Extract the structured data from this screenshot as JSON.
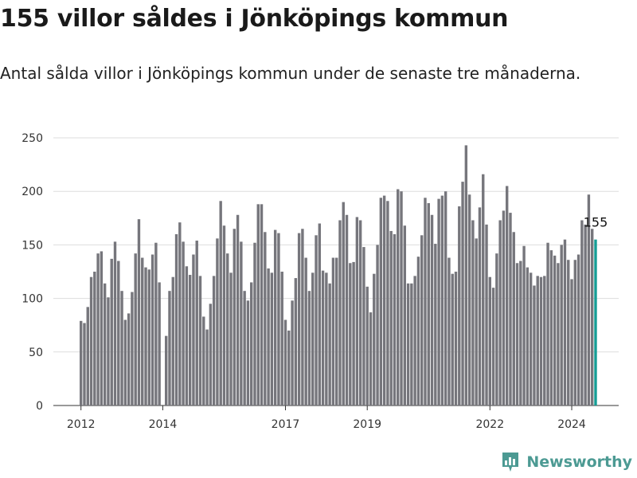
{
  "title": "155 villor såldes i Jönköpings kommun",
  "subtitle": "Antal sålda villor i Jönköpings kommun under de senaste tre månaderna.",
  "brand": "Newsworthy",
  "colors": {
    "bar": "#76767c",
    "highlight": "#159d95",
    "brand": "#4c9a93",
    "grid": "#dddddd"
  },
  "chart_data": {
    "type": "bar",
    "start": "2012-01",
    "values": [
      79,
      77,
      92,
      120,
      125,
      142,
      144,
      114,
      101,
      137,
      153,
      135,
      107,
      80,
      86,
      106,
      142,
      174,
      138,
      129,
      127,
      141,
      152,
      115,
      0,
      65,
      107,
      120,
      160,
      171,
      153,
      130,
      122,
      141,
      154,
      121,
      83,
      71,
      95,
      121,
      156,
      191,
      168,
      142,
      124,
      165,
      178,
      153,
      107,
      98,
      115,
      152,
      188,
      188,
      162,
      128,
      124,
      164,
      161,
      125,
      80,
      70,
      98,
      119,
      161,
      165,
      138,
      107,
      124,
      159,
      170,
      126,
      124,
      114,
      138,
      138,
      173,
      190,
      178,
      133,
      134,
      176,
      173,
      148,
      111,
      87,
      123,
      150,
      194,
      196,
      191,
      163,
      160,
      202,
      200,
      168,
      114,
      114,
      121,
      139,
      159,
      194,
      189,
      178,
      151,
      193,
      196,
      200,
      138,
      123,
      125,
      186,
      209,
      243,
      197,
      173,
      156,
      185,
      216,
      169,
      120,
      110,
      142,
      173,
      182,
      205,
      180,
      162,
      133,
      135,
      149,
      129,
      124,
      112,
      121,
      120,
      121,
      152,
      145,
      140,
      133,
      150,
      155,
      136,
      118,
      136,
      141,
      173,
      169,
      197,
      165,
      155
    ],
    "highlight_last": true,
    "annotation": "155",
    "x_ticks": [
      {
        "label": "2012",
        "index": 0
      },
      {
        "label": "2014",
        "index": 24
      },
      {
        "label": "2017",
        "index": 60
      },
      {
        "label": "2019",
        "index": 84
      },
      {
        "label": "2022",
        "index": 120
      },
      {
        "label": "2024",
        "index": 144
      }
    ],
    "y_ticks": [
      0,
      50,
      100,
      150,
      200,
      250
    ],
    "ylim": [
      0,
      260
    ],
    "grid": "horizontal"
  }
}
